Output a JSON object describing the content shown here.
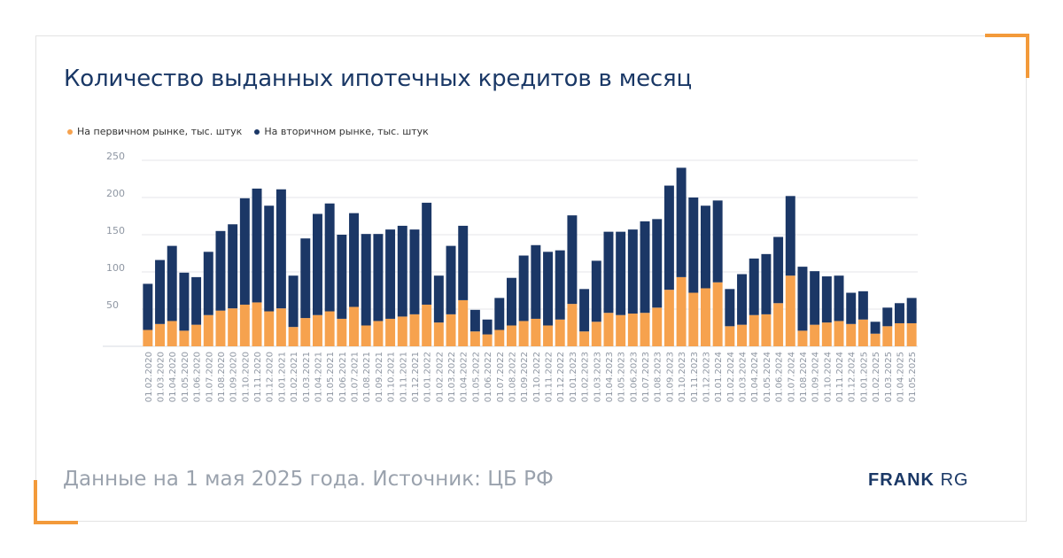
{
  "title": "Количество выданных ипотечных кредитов в месяц",
  "footer": "Данные на 1 мая 2025 года. Источник: ЦБ РФ",
  "logo": "FRANK RG",
  "colors": {
    "primary": "#f6a24e",
    "secondary": "#1b3766",
    "accent": "#f39a3a",
    "text": "#1a3866"
  },
  "chart_data": {
    "type": "bar",
    "stacked": true,
    "ylim": [
      0,
      250
    ],
    "yticks": [
      50,
      100,
      150,
      200,
      250
    ],
    "grid": true,
    "legend_position": "top-left",
    "categories": [
      "01.02.2020",
      "01.03.2020",
      "01.04.2020",
      "01.05.2020",
      "01.06.2020",
      "01.07.2020",
      "01.08.2020",
      "01.09.2020",
      "01.10.2020",
      "01.11.2020",
      "01.12.2020",
      "01.01.2021",
      "01.02.2021",
      "01.03.2021",
      "01.04.2021",
      "01.05.2021",
      "01.06.2021",
      "01.07.2021",
      "01.08.2021",
      "01.09.2021",
      "01.10.2021",
      "01.11.2021",
      "01.12.2021",
      "01.01.2022",
      "01.02.2022",
      "01.03.2022",
      "01.04.2022",
      "01.05.2022",
      "01.06.2022",
      "01.07.2022",
      "01.08.2022",
      "01.09.2022",
      "01.10.2022",
      "01.11.2022",
      "01.12.2022",
      "01.01.2023",
      "01.02.2023",
      "01.03.2023",
      "01.04.2023",
      "01.05.2023",
      "01.06.2023",
      "01.07.2023",
      "01.08.2023",
      "01.09.2023",
      "01.10.2023",
      "01.11.2023",
      "01.12.2023",
      "01.01.2024",
      "01.02.2024",
      "01.03.2024",
      "01.04.2024",
      "01.05.2024",
      "01.06.2024",
      "01.07.2024",
      "01.08.2024",
      "01.09.2024",
      "01.10.2024",
      "01.11.2024",
      "01.12.2024",
      "01.01.2025",
      "01.02.2025",
      "01.03.2025",
      "01.04.2025",
      "01.05.2025"
    ],
    "series": [
      {
        "name": "На первичном рынке, тыс. штук",
        "color": "#f6a24e",
        "values": [
          22,
          30,
          34,
          21,
          29,
          42,
          48,
          51,
          56,
          59,
          47,
          51,
          26,
          38,
          42,
          47,
          37,
          53,
          28,
          34,
          37,
          40,
          43,
          56,
          32,
          43,
          62,
          20,
          16,
          22,
          28,
          34,
          37,
          28,
          36,
          57,
          20,
          33,
          45,
          42,
          44,
          45,
          52,
          76,
          93,
          72,
          78,
          86,
          27,
          29,
          42,
          43,
          58,
          95,
          21,
          29,
          32,
          34,
          30,
          36,
          17,
          27,
          31,
          31
        ]
      },
      {
        "name": "На вторичном рынке, тыс. штук",
        "color": "#1b3766",
        "values": [
          62,
          86,
          101,
          78,
          64,
          85,
          107,
          113,
          143,
          153,
          142,
          160,
          69,
          107,
          136,
          145,
          113,
          126,
          123,
          117,
          120,
          122,
          114,
          137,
          63,
          92,
          100,
          29,
          20,
          43,
          64,
          88,
          99,
          99,
          93,
          119,
          57,
          82,
          109,
          112,
          113,
          123,
          119,
          140,
          147,
          128,
          111,
          110,
          50,
          68,
          76,
          81,
          89,
          107,
          86,
          72,
          62,
          61,
          42,
          38,
          16,
          25,
          27,
          34
        ]
      }
    ]
  }
}
